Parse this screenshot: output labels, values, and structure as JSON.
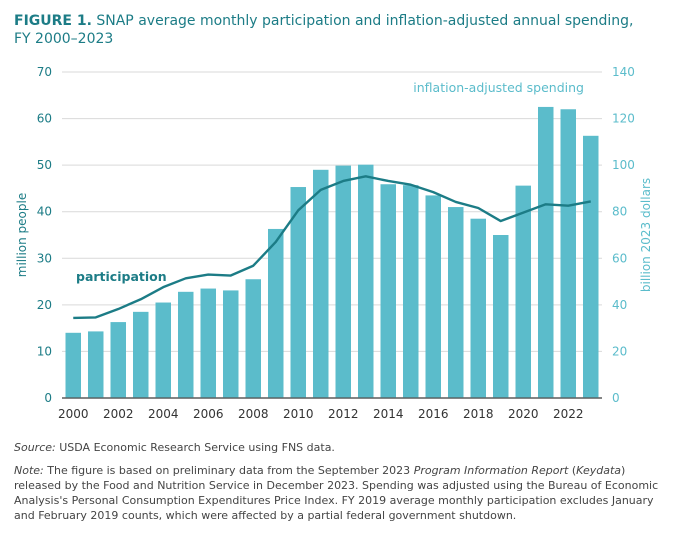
{
  "figure": {
    "label": "FIGURE 1.",
    "title": "SNAP average monthly participation and inflation-adjusted annual spending,",
    "subtitle": "FY 2000–2023"
  },
  "chart_data": {
    "type": "bar",
    "title": "SNAP average monthly participation and inflation-adjusted annual spending, FY 2000–2023",
    "x": [
      2000,
      2001,
      2002,
      2003,
      2004,
      2005,
      2006,
      2007,
      2008,
      2009,
      2010,
      2011,
      2012,
      2013,
      2014,
      2015,
      2016,
      2017,
      2018,
      2019,
      2020,
      2021,
      2022,
      2023
    ],
    "x_tick_labels": [
      "2000",
      "2002",
      "2004",
      "2006",
      "2008",
      "2010",
      "2012",
      "2014",
      "2016",
      "2018",
      "2020",
      "2022"
    ],
    "series": [
      {
        "name": "inflation-adjusted spending",
        "type": "bar",
        "axis": "right",
        "values": [
          28,
          28.6,
          32.6,
          37,
          41,
          45.6,
          47,
          46.2,
          51,
          72.6,
          90.6,
          98,
          99.8,
          100.2,
          91.8,
          91.4,
          87,
          82,
          77,
          70,
          91.2,
          125,
          124,
          112.6
        ]
      },
      {
        "name": "participation",
        "type": "line",
        "axis": "left",
        "values": [
          17.2,
          17.3,
          19.1,
          21.2,
          23.8,
          25.7,
          26.5,
          26.3,
          28.4,
          33.5,
          40.3,
          44.7,
          46.6,
          47.6,
          46.6,
          45.8,
          44.2,
          42.1,
          40.8,
          38.0,
          39.8,
          41.6,
          41.3,
          42.2
        ]
      }
    ],
    "ylabel_left": "million people",
    "ylabel_right": "billion 2023 dollars",
    "ylim_left": [
      0,
      70
    ],
    "ylim_right": [
      0,
      140
    ],
    "y_ticks_left": [
      "0",
      "10",
      "20",
      "30",
      "40",
      "50",
      "60",
      "70"
    ],
    "y_ticks_right": [
      "0",
      "20",
      "40",
      "60",
      "80",
      "100",
      "120",
      "140"
    ],
    "grid": true,
    "colors": {
      "bars": "#5bbccb",
      "line": "#1c7c86",
      "right_axis_text": "#5bbccb",
      "left_axis_text": "#1c7c86"
    }
  },
  "notes": {
    "source_label": "Source:",
    "source_text": " USDA Economic Research Service using FNS data.",
    "note_label": "Note:",
    "note_text_1": " The figure is based on preliminary data from the September 2023 ",
    "note_italic_1": "Program Information Report",
    "note_text_2": " (",
    "note_italic_2": "Keydata",
    "note_text_3": ") released by the Food and Nutrition Service in December 2023. Spending was adjusted using the Bureau of Economic Analysis's Personal Consumption Expenditures Price Index. FY 2019 average monthly participation excludes January and February 2019 counts, which were affected by a partial federal government shutdown."
  }
}
